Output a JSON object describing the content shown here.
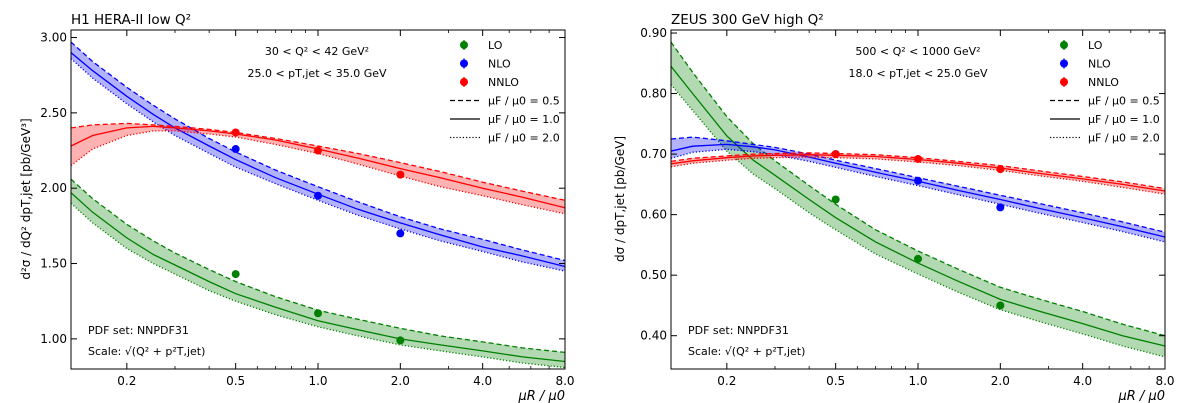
{
  "chart_data": [
    {
      "type": "line",
      "title": "H1 HERA-II low Q²",
      "xlabel": "μR / μ0",
      "ylabel": "d²σ / dQ² dpT,jet  [pb/GeV³]",
      "xscale": "log",
      "xlim": [
        0.125,
        8.0
      ],
      "ylim": [
        0.8,
        3.05
      ],
      "xticks": [
        0.2,
        0.5,
        1.0,
        2.0,
        4.0,
        8.0
      ],
      "xtick_labels": [
        "0.2",
        "0.5",
        "1.0",
        "2.0",
        "4.0",
        "8.0"
      ],
      "yticks": [
        1.0,
        1.5,
        2.0,
        2.5,
        3.0
      ],
      "ytick_labels": [
        "1.00",
        "1.50",
        "2.00",
        "2.50",
        "3.00"
      ],
      "annotations": [
        "30 < Q² < 42 GeV²",
        "25.0 < pT,jet < 35.0 GeV"
      ],
      "pdf_note": "PDF set: NNPDF31",
      "scale_note": "Scale: √(Q² + p²T,jet)",
      "legend": {
        "position": "top-right",
        "entries": [
          "LO",
          "NLO",
          "NNLO",
          "μF / μ0 = 0.5",
          "μF / μ0 = 1.0",
          "μF / μ0 = 2.0"
        ]
      },
      "x": [
        0.125,
        0.15,
        0.2,
        0.25,
        0.3,
        0.4,
        0.5,
        0.7,
        1.0,
        1.4,
        2.0,
        2.8,
        4.0,
        5.6,
        8.0
      ],
      "series": [
        {
          "name": "LO",
          "color": "#008000",
          "central": [
            1.97,
            1.84,
            1.67,
            1.56,
            1.49,
            1.38,
            1.3,
            1.21,
            1.12,
            1.06,
            1.0,
            0.96,
            0.92,
            0.88,
            0.85
          ],
          "muf_low": [
            2.06,
            1.93,
            1.76,
            1.65,
            1.57,
            1.46,
            1.38,
            1.28,
            1.19,
            1.13,
            1.07,
            1.02,
            0.98,
            0.94,
            0.91
          ],
          "muf_high": [
            1.9,
            1.77,
            1.6,
            1.5,
            1.43,
            1.32,
            1.25,
            1.16,
            1.08,
            1.02,
            0.96,
            0.92,
            0.88,
            0.84,
            0.81
          ],
          "points_x": [
            0.5,
            1.0,
            2.0
          ],
          "points_y": [
            1.43,
            1.17,
            0.99
          ]
        },
        {
          "name": "NLO",
          "color": "#0000ff",
          "central": [
            2.9,
            2.78,
            2.61,
            2.49,
            2.4,
            2.28,
            2.19,
            2.07,
            1.96,
            1.86,
            1.77,
            1.69,
            1.61,
            1.55,
            1.48
          ],
          "muf_low": [
            2.97,
            2.84,
            2.67,
            2.55,
            2.46,
            2.33,
            2.24,
            2.12,
            2.01,
            1.91,
            1.81,
            1.73,
            1.66,
            1.59,
            1.52
          ],
          "muf_high": [
            2.86,
            2.73,
            2.56,
            2.44,
            2.35,
            2.23,
            2.14,
            2.03,
            1.92,
            1.82,
            1.73,
            1.65,
            1.58,
            1.51,
            1.45
          ],
          "points_x": [
            0.5,
            1.0,
            2.0
          ],
          "points_y": [
            2.26,
            1.95,
            1.7
          ]
        },
        {
          "name": "NNLO",
          "color": "#ff0000",
          "central": [
            2.28,
            2.35,
            2.4,
            2.41,
            2.4,
            2.38,
            2.36,
            2.32,
            2.26,
            2.2,
            2.13,
            2.07,
            2.0,
            1.94,
            1.87
          ],
          "muf_low": [
            2.4,
            2.42,
            2.43,
            2.42,
            2.41,
            2.39,
            2.37,
            2.33,
            2.28,
            2.23,
            2.17,
            2.11,
            2.04,
            1.98,
            1.92
          ],
          "muf_high": [
            2.15,
            2.26,
            2.35,
            2.38,
            2.38,
            2.36,
            2.34,
            2.29,
            2.23,
            2.16,
            2.08,
            2.01,
            1.95,
            1.89,
            1.83
          ],
          "points_x": [
            0.5,
            1.0,
            2.0
          ],
          "points_y": [
            2.37,
            2.25,
            2.09
          ]
        }
      ]
    },
    {
      "type": "line",
      "title": "ZEUS 300 GeV high Q²",
      "xlabel": "μR / μ0",
      "ylabel": "dσ / dpT,jet  [pb/GeV]",
      "xscale": "log",
      "xlim": [
        0.125,
        8.0
      ],
      "ylim": [
        0.345,
        0.905
      ],
      "xticks": [
        0.2,
        0.5,
        1.0,
        2.0,
        4.0,
        8.0
      ],
      "xtick_labels": [
        "0.2",
        "0.5",
        "1.0",
        "2.0",
        "4.0",
        "8.0"
      ],
      "yticks": [
        0.4,
        0.5,
        0.6,
        0.7,
        0.8,
        0.9
      ],
      "ytick_labels": [
        "0.40",
        "0.50",
        "0.60",
        "0.70",
        "0.80",
        "0.90"
      ],
      "annotations": [
        "500 < Q² < 1000 GeV²",
        "18.0 < pT,jet < 25.0 GeV"
      ],
      "pdf_note": "PDF set: NNPDF31",
      "scale_note": "Scale: √(Q² + p²T,jet)",
      "legend": {
        "position": "top-right",
        "entries": [
          "LO",
          "NLO",
          "NNLO",
          "μF / μ0 = 0.5",
          "μF / μ0 = 1.0",
          "μF / μ0 = 2.0"
        ]
      },
      "x": [
        0.125,
        0.15,
        0.2,
        0.25,
        0.3,
        0.4,
        0.5,
        0.7,
        1.0,
        1.4,
        2.0,
        2.8,
        4.0,
        5.6,
        8.0
      ],
      "series": [
        {
          "name": "LO",
          "color": "#008000",
          "central": [
            0.845,
            0.8,
            0.73,
            0.69,
            0.665,
            0.625,
            0.595,
            0.555,
            0.52,
            0.49,
            0.46,
            0.44,
            0.42,
            0.4,
            0.383
          ],
          "muf_low": [
            0.885,
            0.835,
            0.762,
            0.717,
            0.689,
            0.648,
            0.617,
            0.575,
            0.54,
            0.51,
            0.48,
            0.46,
            0.44,
            0.419,
            0.4
          ],
          "muf_high": [
            0.815,
            0.772,
            0.705,
            0.667,
            0.643,
            0.603,
            0.575,
            0.535,
            0.502,
            0.472,
            0.443,
            0.423,
            0.403,
            0.383,
            0.365
          ],
          "points_x": [
            0.5,
            1.0,
            2.0
          ],
          "points_y": [
            0.625,
            0.527,
            0.45
          ]
        },
        {
          "name": "NLO",
          "color": "#0000ff",
          "central": [
            0.705,
            0.713,
            0.716,
            0.712,
            0.707,
            0.695,
            0.685,
            0.67,
            0.655,
            0.64,
            0.625,
            0.61,
            0.595,
            0.58,
            0.563
          ],
          "muf_low": [
            0.725,
            0.728,
            0.722,
            0.716,
            0.711,
            0.7,
            0.69,
            0.676,
            0.661,
            0.647,
            0.632,
            0.618,
            0.603,
            0.588,
            0.571
          ],
          "muf_high": [
            0.693,
            0.703,
            0.708,
            0.704,
            0.699,
            0.688,
            0.678,
            0.663,
            0.648,
            0.633,
            0.617,
            0.602,
            0.587,
            0.572,
            0.555
          ],
          "points_x": [
            0.5,
            1.0,
            2.0
          ],
          "points_y": [
            0.7,
            0.656,
            0.612
          ]
        },
        {
          "name": "NNLO",
          "color": "#ff0000",
          "central": [
            0.684,
            0.689,
            0.694,
            0.697,
            0.698,
            0.699,
            0.698,
            0.696,
            0.691,
            0.685,
            0.677,
            0.668,
            0.659,
            0.65,
            0.639
          ],
          "muf_low": [
            0.688,
            0.693,
            0.697,
            0.7,
            0.701,
            0.702,
            0.701,
            0.699,
            0.694,
            0.688,
            0.681,
            0.672,
            0.663,
            0.654,
            0.643
          ],
          "muf_high": [
            0.679,
            0.685,
            0.69,
            0.693,
            0.694,
            0.695,
            0.694,
            0.692,
            0.687,
            0.681,
            0.673,
            0.664,
            0.655,
            0.645,
            0.634
          ],
          "points_x": [
            0.5,
            1.0,
            2.0
          ],
          "points_y": [
            0.7,
            0.692,
            0.675
          ]
        }
      ]
    }
  ]
}
